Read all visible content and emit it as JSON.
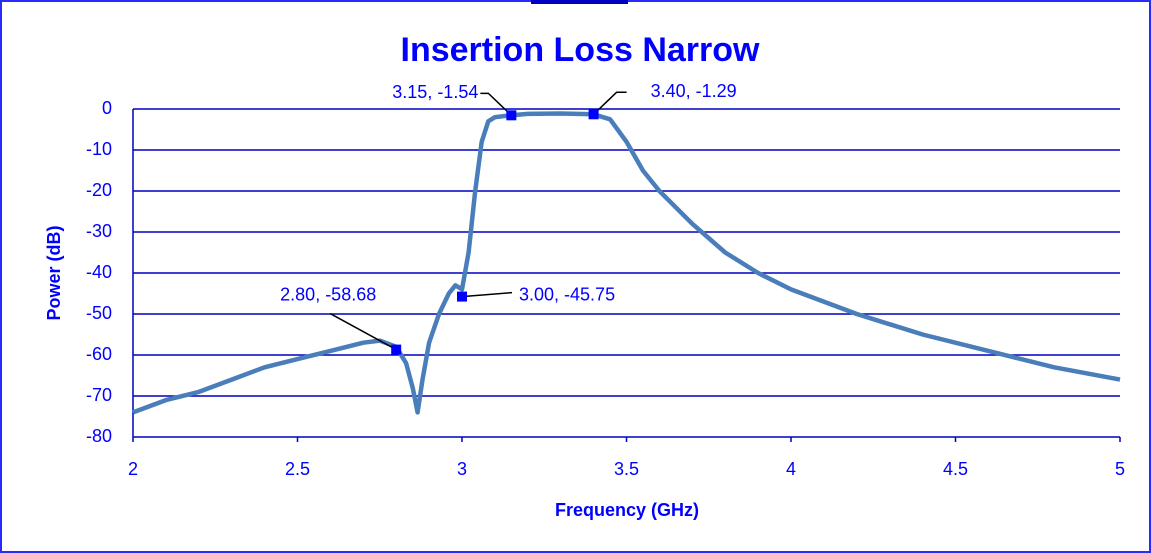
{
  "chart_data": {
    "type": "line",
    "title": "Insertion Loss Narrow",
    "xlabel": "Frequency (GHz)",
    "ylabel": "Power (dB)",
    "x": [
      2.0,
      2.1,
      2.2,
      2.3,
      2.4,
      2.5,
      2.6,
      2.7,
      2.75,
      2.8,
      2.83,
      2.85,
      2.865,
      2.88,
      2.9,
      2.93,
      2.96,
      2.98,
      3.0,
      3.02,
      3.04,
      3.06,
      3.08,
      3.1,
      3.15,
      3.2,
      3.3,
      3.4,
      3.45,
      3.5,
      3.55,
      3.6,
      3.7,
      3.8,
      3.9,
      4.0,
      4.2,
      4.4,
      4.6,
      4.8,
      5.0
    ],
    "series": [
      {
        "name": "Insertion Loss",
        "color": "#4a7ebb",
        "values": [
          -74,
          -71,
          -69,
          -66,
          -63,
          -61,
          -59,
          -57,
          -56.5,
          -58,
          -62,
          -68,
          -74,
          -66,
          -57,
          -50,
          -45,
          -43,
          -44,
          -35,
          -20,
          -8,
          -3,
          -2,
          -1.5,
          -1.2,
          -1.1,
          -1.3,
          -2.5,
          -8,
          -15,
          -20,
          -28,
          -35,
          -40,
          -44,
          -50,
          -55,
          -59,
          -63,
          -66
        ]
      }
    ],
    "markers": {
      "color": "#0000ff",
      "x": [
        2.8,
        3.0,
        3.15,
        3.4
      ],
      "values": [
        -58.68,
        -45.75,
        -1.54,
        -1.29
      ],
      "value_labels": [
        "2.80, -58.68",
        "3.00, -45.75",
        "3.15, -1.54",
        "3.40, -1.29"
      ]
    },
    "xlim": [
      2,
      5
    ],
    "xticks": [
      2,
      2.5,
      3,
      3.5,
      4,
      4.5,
      5
    ],
    "ylim": [
      -80,
      0
    ],
    "yticks": [
      0,
      -10,
      -20,
      -30,
      -40,
      -50,
      -60,
      -70,
      -80
    ],
    "grid": true,
    "grid_color": "#0000c0"
  }
}
